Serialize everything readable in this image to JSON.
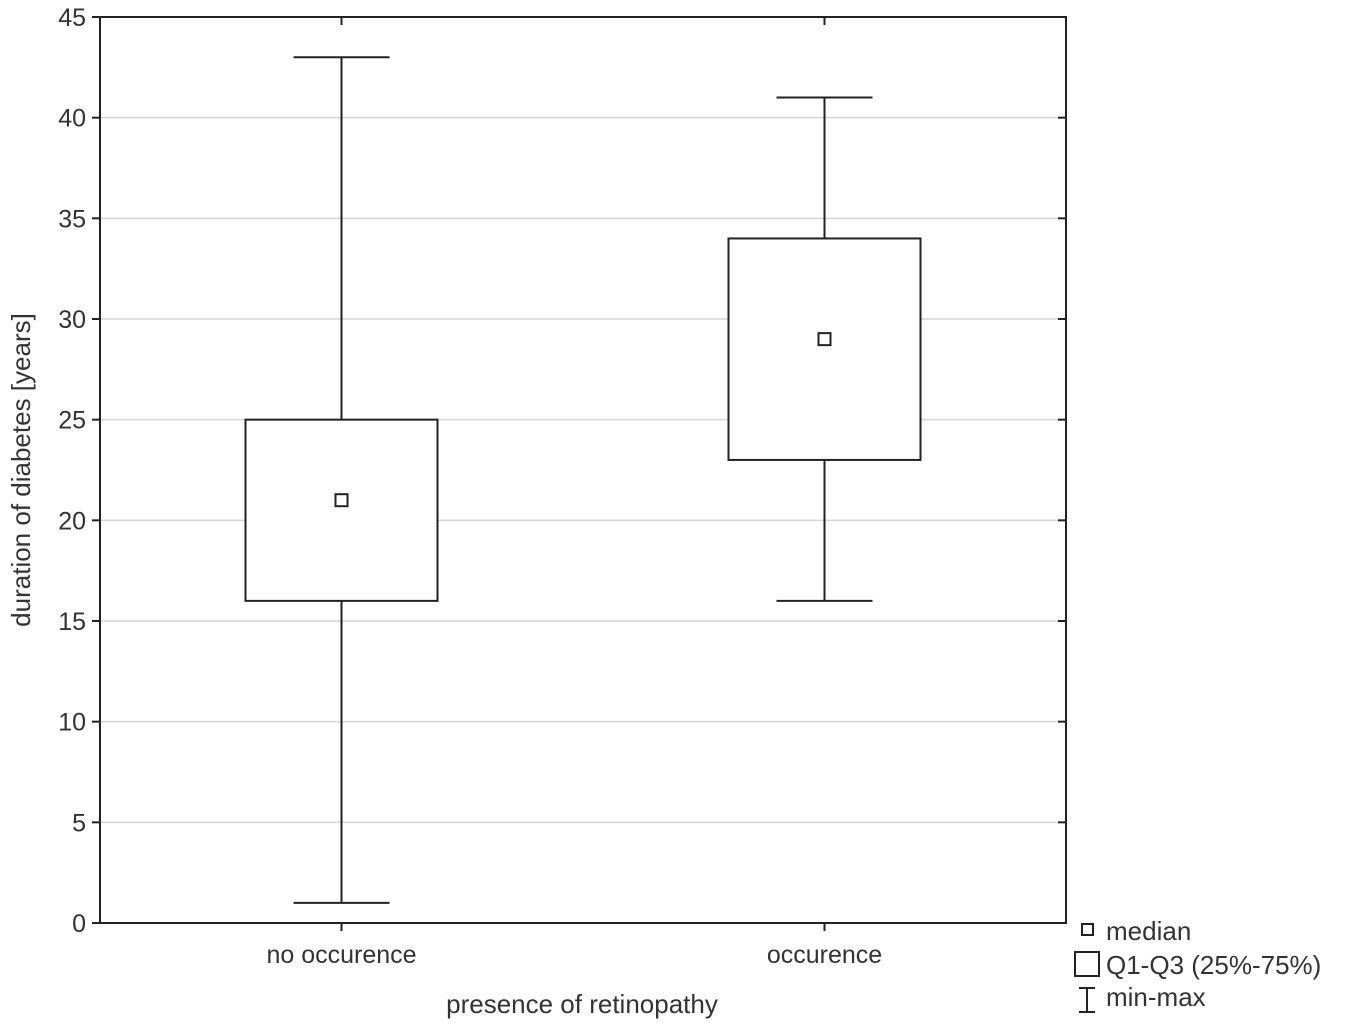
{
  "chart_data": {
    "type": "boxplot",
    "title": "",
    "xlabel": "presence of retinopathy",
    "ylabel": "duration of diabetes [years]",
    "ylim": [
      0,
      45
    ],
    "yticks": [
      "0",
      "5",
      "10",
      "15",
      "20",
      "25",
      "30",
      "35",
      "40",
      "45"
    ],
    "grid": true,
    "legend_position": "bottom-right outside plot",
    "categories": [
      "no occurence",
      "occurence"
    ],
    "boxes": [
      {
        "category": "no occurence",
        "min": 1,
        "q1": 16,
        "median": 21,
        "q3": 25,
        "max": 43
      },
      {
        "category": "occurence",
        "min": 16,
        "q1": 23,
        "median": 29,
        "q3": 34,
        "max": 41
      }
    ],
    "legend": [
      {
        "symbol": "median-icon",
        "label": "median"
      },
      {
        "symbol": "box-icon",
        "label": "Q1-Q3 (25%-75%)"
      },
      {
        "symbol": "whisker-icon",
        "label": "min-max"
      }
    ]
  }
}
